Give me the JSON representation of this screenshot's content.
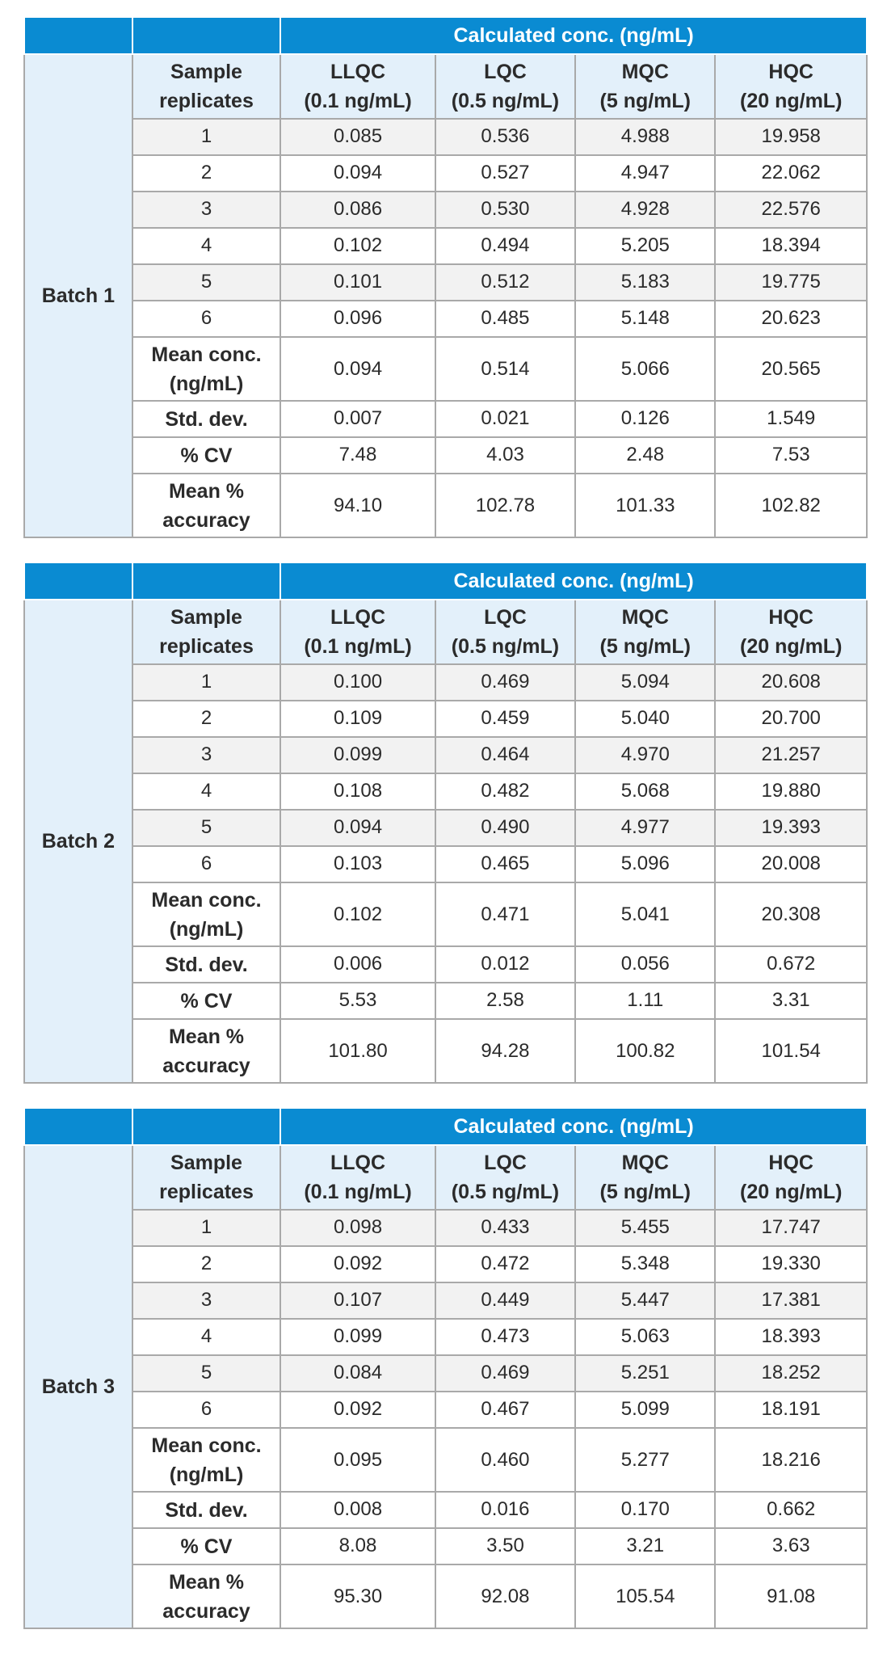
{
  "header_banner": "Calculated conc. (ng/mL)",
  "columns": {
    "sample": [
      "Sample",
      "replicates"
    ],
    "llqc": [
      "LLQC",
      "(0.1 ng/mL)"
    ],
    "lqc": [
      "LQC",
      "(0.5 ng/mL)"
    ],
    "mqc": [
      "MQC",
      "(5 ng/mL)"
    ],
    "hqc": [
      "HQC",
      "(20 ng/mL)"
    ]
  },
  "row_labels": {
    "mean_conc": [
      "Mean conc.",
      "(ng/mL)"
    ],
    "std_dev": "Std. dev.",
    "cv": "% CV",
    "accuracy": [
      "Mean %",
      "accuracy"
    ]
  },
  "batches": [
    {
      "label": "Batch 1",
      "replicates": [
        {
          "id": "1",
          "values": [
            "0.085",
            "0.536",
            "4.988",
            "19.958"
          ]
        },
        {
          "id": "2",
          "values": [
            "0.094",
            "0.527",
            "4.947",
            "22.062"
          ]
        },
        {
          "id": "3",
          "values": [
            "0.086",
            "0.530",
            "4.928",
            "22.576"
          ]
        },
        {
          "id": "4",
          "values": [
            "0.102",
            "0.494",
            "5.205",
            "18.394"
          ]
        },
        {
          "id": "5",
          "values": [
            "0.101",
            "0.512",
            "5.183",
            "19.775"
          ]
        },
        {
          "id": "6",
          "values": [
            "0.096",
            "0.485",
            "5.148",
            "20.623"
          ]
        }
      ],
      "mean_conc": [
        "0.094",
        "0.514",
        "5.066",
        "20.565"
      ],
      "std_dev": [
        "0.007",
        "0.021",
        "0.126",
        "1.549"
      ],
      "cv": [
        "7.48",
        "4.03",
        "2.48",
        "7.53"
      ],
      "accuracy": [
        "94.10",
        "102.78",
        "101.33",
        "102.82"
      ]
    },
    {
      "label": "Batch 2",
      "replicates": [
        {
          "id": "1",
          "values": [
            "0.100",
            "0.469",
            "5.094",
            "20.608"
          ]
        },
        {
          "id": "2",
          "values": [
            "0.109",
            "0.459",
            "5.040",
            "20.700"
          ]
        },
        {
          "id": "3",
          "values": [
            "0.099",
            "0.464",
            "4.970",
            "21.257"
          ]
        },
        {
          "id": "4",
          "values": [
            "0.108",
            "0.482",
            "5.068",
            "19.880"
          ]
        },
        {
          "id": "5",
          "values": [
            "0.094",
            "0.490",
            "4.977",
            "19.393"
          ]
        },
        {
          "id": "6",
          "values": [
            "0.103",
            "0.465",
            "5.096",
            "20.008"
          ]
        }
      ],
      "mean_conc": [
        "0.102",
        "0.471",
        "5.041",
        "20.308"
      ],
      "std_dev": [
        "0.006",
        "0.012",
        "0.056",
        "0.672"
      ],
      "cv": [
        "5.53",
        "2.58",
        "1.11",
        "3.31"
      ],
      "accuracy": [
        "101.80",
        "94.28",
        "100.82",
        "101.54"
      ]
    },
    {
      "label": "Batch 3",
      "replicates": [
        {
          "id": "1",
          "values": [
            "0.098",
            "0.433",
            "5.455",
            "17.747"
          ]
        },
        {
          "id": "2",
          "values": [
            "0.092",
            "0.472",
            "5.348",
            "19.330"
          ]
        },
        {
          "id": "3",
          "values": [
            "0.107",
            "0.449",
            "5.447",
            "17.381"
          ]
        },
        {
          "id": "4",
          "values": [
            "0.099",
            "0.473",
            "5.063",
            "18.393"
          ]
        },
        {
          "id": "5",
          "values": [
            "0.084",
            "0.469",
            "5.251",
            "18.252"
          ]
        },
        {
          "id": "6",
          "values": [
            "0.092",
            "0.467",
            "5.099",
            "18.191"
          ]
        }
      ],
      "mean_conc": [
        "0.095",
        "0.460",
        "5.277",
        "18.216"
      ],
      "std_dev": [
        "0.008",
        "0.016",
        "0.170",
        "0.662"
      ],
      "cv": [
        "8.08",
        "3.50",
        "3.21",
        "3.63"
      ],
      "accuracy": [
        "95.30",
        "92.08",
        "105.54",
        "91.08"
      ]
    }
  ]
}
